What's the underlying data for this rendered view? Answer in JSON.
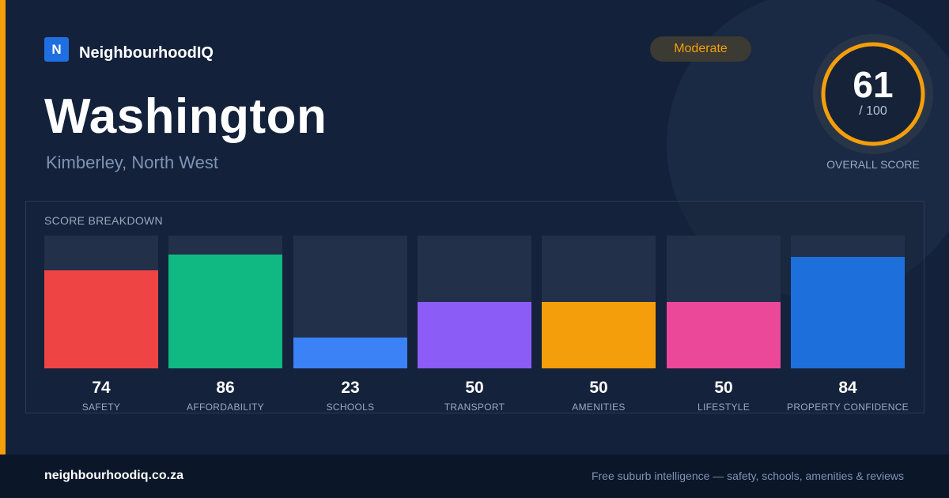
{
  "brand": {
    "logo_letter": "N",
    "name": "NeighbourhoodIQ"
  },
  "suburb": {
    "name": "Washington",
    "location": "Kimberley, North West"
  },
  "rating": {
    "label": "Moderate",
    "color": "#f59e0b"
  },
  "overall": {
    "score": "61",
    "max": "/ 100",
    "label": "OVERALL SCORE",
    "fraction": 0.61
  },
  "breakdown": {
    "title": "SCORE BREAKDOWN",
    "categories": [
      {
        "label": "SAFETY",
        "value": 74,
        "color": "#ef4444"
      },
      {
        "label": "AFFORDABILITY",
        "value": 86,
        "color": "#10b981"
      },
      {
        "label": "SCHOOLS",
        "value": 23,
        "color": "#3b82f6"
      },
      {
        "label": "TRANSPORT",
        "value": 50,
        "color": "#8b5cf6"
      },
      {
        "label": "AMENITIES",
        "value": 50,
        "color": "#f59e0b"
      },
      {
        "label": "LIFESTYLE",
        "value": 50,
        "color": "#ec4899"
      },
      {
        "label": "PROPERTY CONFIDENCE",
        "value": 84,
        "color": "#1d6fdc"
      }
    ]
  },
  "footer": {
    "site": "neighbourhoodiq.co.za",
    "tagline": "Free suburb intelligence — safety, schools, amenities & reviews"
  },
  "colors": {
    "accent": "#f59e0b",
    "background": "#13213b",
    "brand": "#1f6fe0"
  }
}
